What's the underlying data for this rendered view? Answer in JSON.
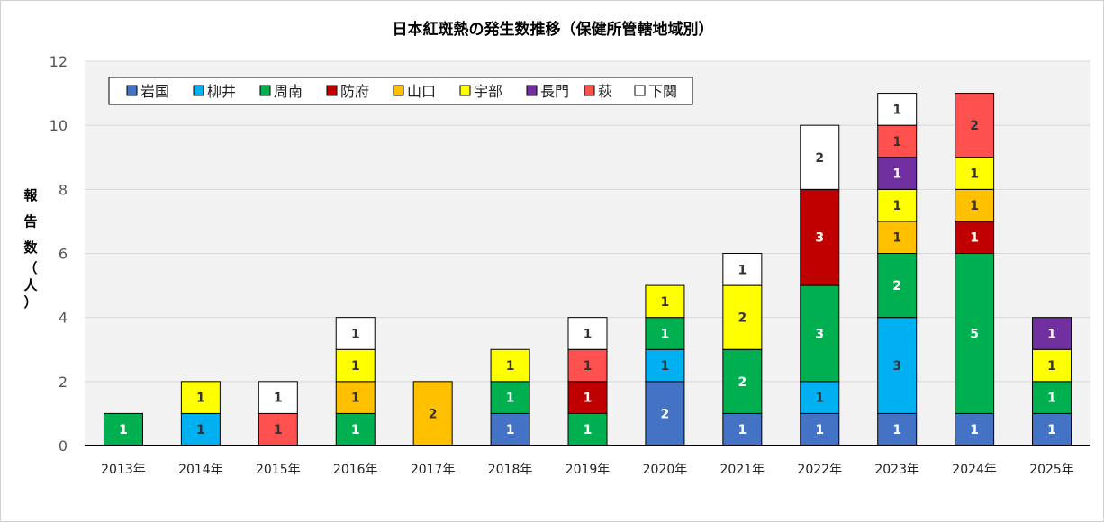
{
  "chart_data": {
    "type": "bar",
    "stacked": true,
    "title": "日本紅斑熱の発生数推移（保健所管轄地域別）",
    "ylabel_chars": [
      "報",
      "告",
      "数",
      "（",
      "人",
      "）"
    ],
    "ylim": [
      0,
      12
    ],
    "yticks": [
      "0",
      "2",
      "4",
      "6",
      "8",
      "10",
      "12"
    ],
    "grid": true,
    "legend_position": "top-left",
    "categories": [
      "2013年",
      "2014年",
      "2015年",
      "2016年",
      "2017年",
      "2018年",
      "2019年",
      "2020年",
      "2021年",
      "2022年",
      "2023年",
      "2024年",
      "2025年"
    ],
    "series": [
      {
        "name": "岩国",
        "color": "#4472c4",
        "label_color": "#ffffff",
        "values": [
          0,
          0,
          0,
          0,
          0,
          1,
          0,
          2,
          1,
          1,
          1,
          1,
          1
        ]
      },
      {
        "name": "柳井",
        "color": "#00b0f0",
        "label_color": "#333333",
        "values": [
          0,
          1,
          0,
          0,
          0,
          0,
          0,
          1,
          0,
          1,
          3,
          0,
          0
        ]
      },
      {
        "name": "周南",
        "color": "#00b050",
        "label_color": "#ffffff",
        "values": [
          1,
          0,
          0,
          1,
          0,
          1,
          1,
          1,
          2,
          3,
          2,
          5,
          1
        ]
      },
      {
        "name": "防府",
        "color": "#c00000",
        "label_color": "#ffffff",
        "values": [
          0,
          0,
          0,
          0,
          0,
          0,
          1,
          0,
          0,
          3,
          0,
          1,
          0
        ]
      },
      {
        "name": "山口",
        "color": "#ffc000",
        "label_color": "#333333",
        "values": [
          0,
          0,
          0,
          1,
          2,
          0,
          0,
          0,
          0,
          0,
          1,
          1,
          0
        ]
      },
      {
        "name": "宇部",
        "color": "#ffff00",
        "label_color": "#333333",
        "values": [
          0,
          1,
          0,
          1,
          0,
          1,
          0,
          1,
          2,
          0,
          1,
          1,
          1
        ]
      },
      {
        "name": "長門",
        "color": "#7030a0",
        "label_color": "#ffffff",
        "values": [
          0,
          0,
          0,
          0,
          0,
          0,
          0,
          0,
          0,
          0,
          1,
          0,
          1
        ]
      },
      {
        "name": "萩",
        "color": "#ff5050",
        "label_color": "#333333",
        "values": [
          0,
          0,
          1,
          0,
          0,
          0,
          1,
          0,
          0,
          0,
          1,
          2,
          0
        ]
      },
      {
        "name": "下関",
        "color": "#ffffff",
        "label_color": "#333333",
        "values": [
          0,
          0,
          1,
          1,
          0,
          0,
          1,
          0,
          1,
          2,
          1,
          0,
          0
        ]
      }
    ]
  }
}
